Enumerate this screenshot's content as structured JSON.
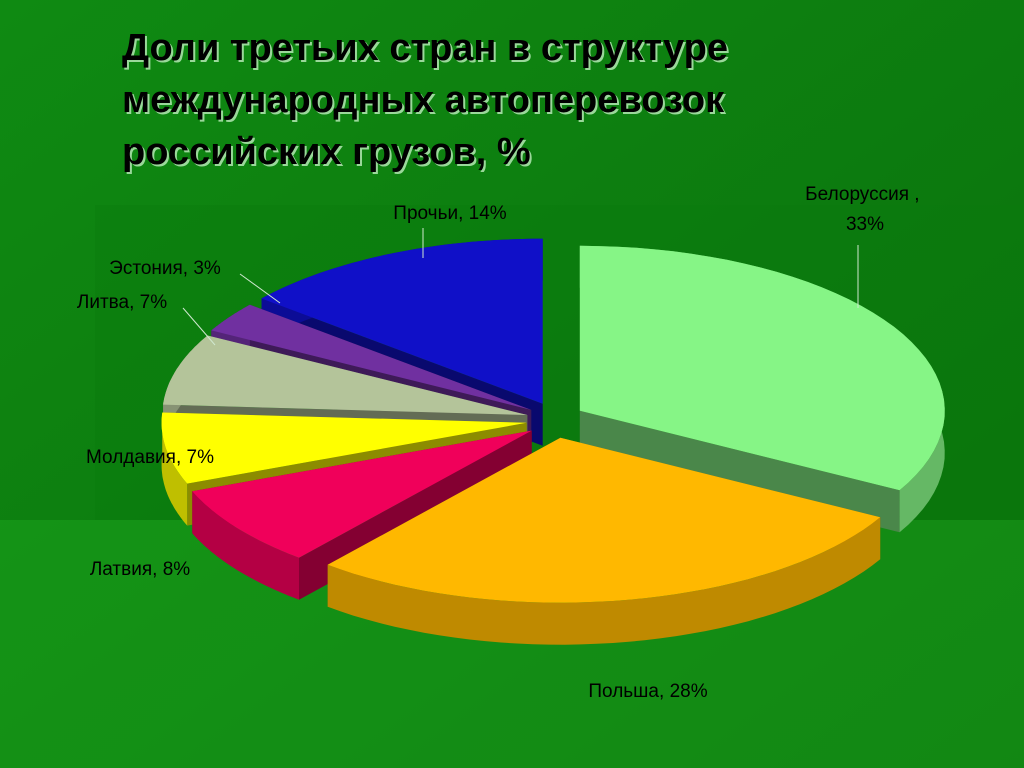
{
  "chart_data": {
    "type": "pie",
    "title": [
      "Доли третьих стран в структуре",
      "международных автоперевозок",
      "российских грузов, %"
    ],
    "categories": [
      "Белоруссия ",
      "Польша",
      "Латвия",
      "Молдавия",
      "Литва",
      "Эстония",
      "Прочьи"
    ],
    "values": [
      33,
      28,
      8,
      7,
      7,
      3,
      14
    ],
    "value_labels": [
      "33%",
      "28%",
      "8%",
      "7%",
      "7%",
      "3%",
      "14%"
    ],
    "label_separator": ", ",
    "colors": [
      "#86f586",
      "#ffb800",
      "#f0005a",
      "#ffff00",
      "#b4c49a",
      "#7030a0",
      "#1010c8"
    ]
  }
}
